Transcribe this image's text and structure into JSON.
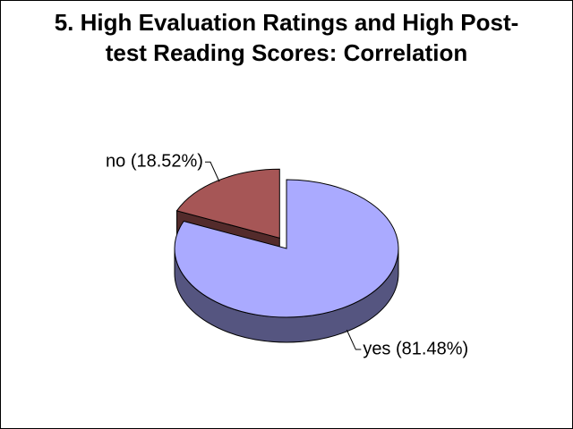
{
  "chart_data": {
    "type": "pie",
    "title": "5. High Evaluation Ratings and High Post-test Reading Scores: Correlation",
    "categories": [
      "yes",
      "no"
    ],
    "values": [
      81.48,
      18.52
    ],
    "value_labels": [
      "yes (81.48%)",
      "no (18.52%)"
    ],
    "colors": [
      "#aaaaff",
      "#a65656"
    ]
  }
}
